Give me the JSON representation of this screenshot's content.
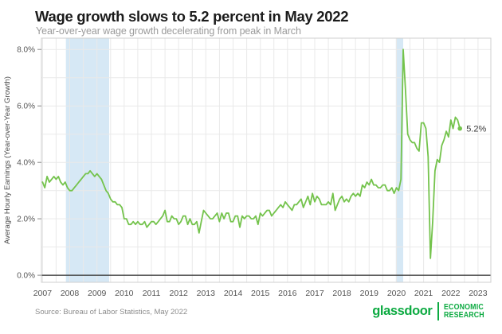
{
  "header": {
    "title": "Wage growth slows to 5.2 percent in May 2022",
    "subtitle": "Year-over-year wage growth decelerating from peak in March"
  },
  "footer": {
    "source": "Source: Bureau of Labor Statistics, May 2022",
    "brand": "glassdoor",
    "brand_sub_line1": "ECONOMIC",
    "brand_sub_line2": "RESEARCH"
  },
  "colors": {
    "line": "#74c34c",
    "band": "#d6e8f5",
    "grid": "#e9e9e9",
    "axis_text": "#555555",
    "tick": "#8a8a8a",
    "zero_line": "#2b2b2b",
    "border": "#cfcfcf",
    "annotation": "#3a3a3a",
    "brand_green": "#0caa41"
  },
  "chart_data": {
    "type": "line",
    "title": "Wage growth slows to 5.2 percent in May 2022",
    "subtitle": "Year-over-year wage growth decelerating from peak in March",
    "xlabel": "",
    "ylabel": "Average Hourly Earnings (Year-over-Year Growth)",
    "x_start": "2007-01",
    "freq": "monthly",
    "xlim_years": [
      2006.96,
      2023.47
    ],
    "ylim": [
      -0.25,
      8.4
    ],
    "grid": true,
    "legend": "none",
    "yticks": [
      0,
      2,
      4,
      6,
      8
    ],
    "ytick_labels": [
      "0.0%",
      "2.0%",
      "4.0%",
      "6.0%",
      "8.0%"
    ],
    "xtick_years": [
      2007,
      2008,
      2009,
      2010,
      2011,
      2012,
      2013,
      2014,
      2015,
      2016,
      2017,
      2018,
      2019,
      2020,
      2021,
      2022,
      2023
    ],
    "xtick_labels": [
      "2007",
      "2008",
      "2009",
      "2010",
      "2011",
      "2012",
      "2013",
      "2014",
      "2015",
      "2016",
      "2017",
      "2018",
      "2019",
      "2020",
      "2021",
      "2022",
      "2023"
    ],
    "recession_bands": [
      [
        2007.86,
        2009.45
      ],
      [
        2019.98,
        2020.25
      ]
    ],
    "end_label": "5.2%",
    "series": [
      {
        "name": "Average hourly earnings YoY growth (%)",
        "values": [
          3.3,
          3.1,
          3.5,
          3.3,
          3.4,
          3.5,
          3.4,
          3.5,
          3.3,
          3.2,
          3.3,
          3.1,
          3.0,
          3.0,
          3.1,
          3.2,
          3.3,
          3.4,
          3.5,
          3.6,
          3.6,
          3.7,
          3.6,
          3.5,
          3.6,
          3.5,
          3.4,
          3.2,
          3.0,
          2.9,
          2.7,
          2.6,
          2.6,
          2.5,
          2.5,
          2.4,
          2.0,
          2.0,
          1.8,
          1.8,
          1.9,
          1.8,
          1.9,
          1.8,
          1.8,
          1.9,
          1.7,
          1.8,
          1.9,
          1.9,
          1.8,
          1.9,
          2.0,
          2.1,
          2.3,
          1.9,
          1.9,
          2.1,
          2.0,
          2.0,
          1.8,
          1.9,
          2.1,
          2.1,
          1.8,
          2.0,
          1.8,
          1.8,
          1.9,
          1.5,
          1.9,
          2.3,
          2.2,
          2.1,
          2.0,
          2.0,
          2.1,
          2.2,
          1.9,
          2.2,
          2.0,
          2.2,
          2.2,
          1.9,
          1.9,
          2.1,
          2.1,
          1.7,
          2.1,
          2.0,
          2.1,
          2.1,
          2.0,
          2.0,
          2.1,
          1.8,
          2.2,
          2.1,
          2.2,
          2.3,
          2.3,
          2.1,
          2.2,
          2.3,
          2.4,
          2.5,
          2.4,
          2.6,
          2.5,
          2.4,
          2.3,
          2.5,
          2.5,
          2.6,
          2.7,
          2.4,
          2.6,
          2.8,
          2.5,
          2.9,
          2.6,
          2.8,
          2.7,
          2.5,
          2.5,
          2.5,
          2.6,
          2.5,
          2.9,
          2.3,
          2.5,
          2.7,
          2.8,
          2.6,
          2.7,
          2.6,
          2.8,
          2.9,
          2.8,
          2.9,
          2.8,
          3.2,
          3.1,
          3.3,
          3.2,
          3.4,
          3.2,
          3.2,
          3.1,
          3.1,
          3.2,
          3.2,
          3.0,
          3.0,
          3.1,
          2.9,
          3.1,
          3.0,
          3.4,
          8.0,
          6.6,
          5.0,
          4.8,
          4.7,
          4.7,
          4.5,
          4.4,
          5.4,
          5.4,
          5.2,
          4.2,
          0.6,
          1.9,
          3.7,
          4.1,
          4.0,
          4.6,
          4.8,
          5.1,
          4.9,
          5.5,
          5.2,
          5.6,
          5.5,
          5.2
        ]
      }
    ]
  }
}
